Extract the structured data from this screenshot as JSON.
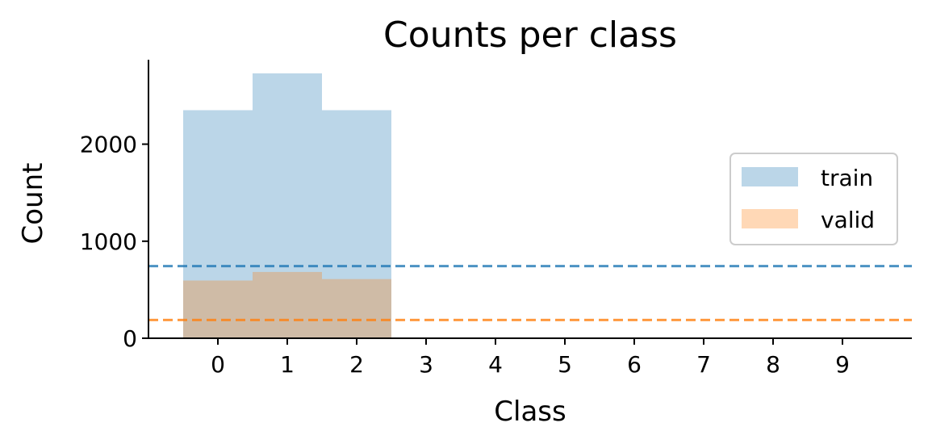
{
  "chart_data": {
    "type": "bar",
    "title": "Counts per class",
    "xlabel": "Class",
    "ylabel": "Count",
    "categories": [
      "0",
      "1",
      "2",
      "3",
      "4",
      "5",
      "6",
      "7",
      "8",
      "9"
    ],
    "x_ticks": [
      "0",
      "1",
      "2",
      "3",
      "4",
      "5",
      "6",
      "7",
      "8",
      "9"
    ],
    "y_ticks": [
      "0",
      "1000",
      "2000"
    ],
    "xlim": [
      -1,
      10
    ],
    "ylim": [
      0,
      2870
    ],
    "series": [
      {
        "name": "train",
        "values": [
          2350,
          2730,
          2350,
          0,
          0,
          0,
          0,
          0,
          0,
          0
        ],
        "color": "#1f77b4",
        "opacity": 0.3
      },
      {
        "name": "valid",
        "values": [
          595,
          683,
          610,
          0,
          0,
          0,
          0,
          0,
          0,
          0
        ],
        "color": "#ff7f0e",
        "opacity": 0.3
      }
    ],
    "reference_lines": [
      {
        "series": "train",
        "value": 743,
        "style": "dashed",
        "color": "#1f77b4"
      },
      {
        "series": "valid",
        "value": 188,
        "style": "dashed",
        "color": "#ff7f0e"
      }
    ],
    "legend": {
      "position": "right",
      "entries": [
        "train",
        "valid"
      ]
    },
    "grid": false
  }
}
